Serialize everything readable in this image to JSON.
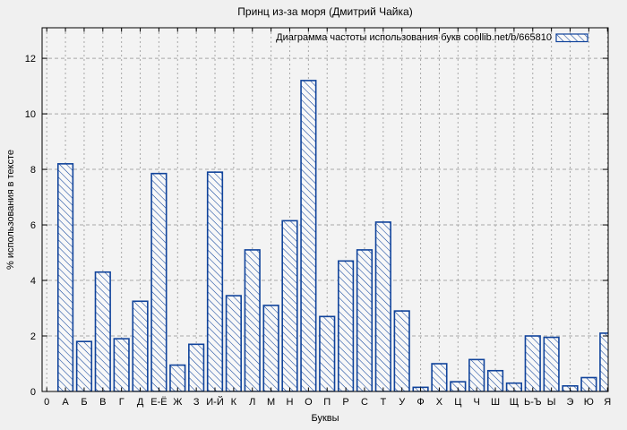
{
  "chart_data": {
    "type": "bar",
    "title": "Принц из-за моря (Дмитрий Чайка)",
    "legend": {
      "label": "Диаграмма частоты использования букв coollib.net/b/665810",
      "position": "top-right-inside",
      "swatch": "blue-hatched-rectangle"
    },
    "xlabel": "Буквы",
    "ylabel": "% использования в тексте",
    "categories": [
      "0",
      "А",
      "Б",
      "В",
      "Г",
      "Д",
      "Е-Ё",
      "Ж",
      "З",
      "И-Й",
      "К",
      "Л",
      "М",
      "Н",
      "О",
      "П",
      "Р",
      "С",
      "Т",
      "У",
      "Ф",
      "Х",
      "Ц",
      "Ч",
      "Ш",
      "Щ",
      "Ь-Ъ",
      "Ы",
      "Э",
      "Ю",
      "Я"
    ],
    "values": [
      0,
      8.2,
      1.8,
      4.3,
      1.9,
      3.25,
      7.85,
      0.95,
      1.7,
      7.9,
      3.45,
      5.1,
      3.1,
      6.15,
      11.2,
      2.7,
      4.7,
      5.1,
      6.1,
      2.9,
      0.15,
      1.0,
      0.35,
      1.15,
      0.75,
      0.3,
      2.0,
      1.95,
      0.2,
      0.5,
      2.1
    ],
    "yticks": [
      0,
      2,
      4,
      6,
      8,
      10,
      12
    ],
    "ylim": [
      0,
      13.1
    ],
    "grid": true,
    "bar_style": "backslash-hatch",
    "colors": {
      "bar_edge": "#10439b",
      "bar_hatch": "#10439b",
      "bar_fill": "#f8f8f8",
      "grid": "#a8a8a8",
      "border": "#000000",
      "figure_background": "#f0f0f0",
      "plot_background": "#f3f3f3",
      "text": "#000000"
    }
  }
}
